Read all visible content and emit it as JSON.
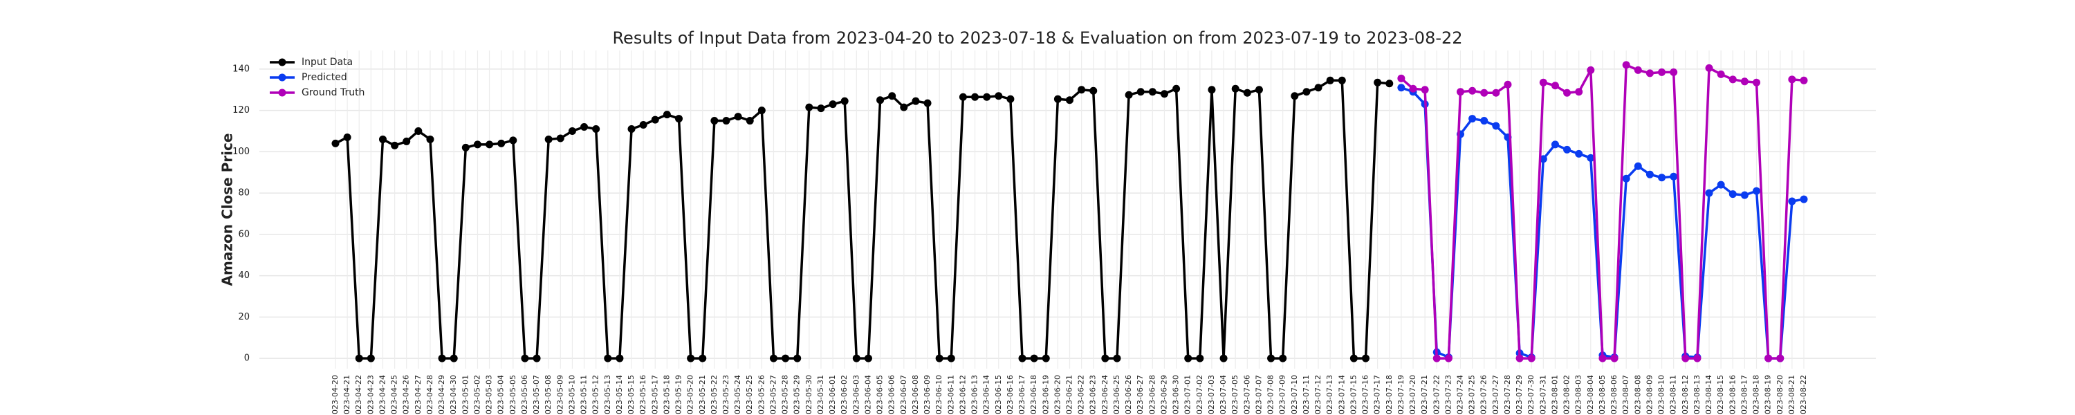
{
  "chart_data": {
    "type": "line",
    "title": "Results of Input Data from 2023-04-20 to 2023-07-18 & Evaluation on from 2023-07-19 to 2023-08-22",
    "y_label": "Amazon Close Price",
    "categories": [
      "2023-04-20",
      "2023-04-21",
      "2023-04-22",
      "2023-04-23",
      "2023-04-24",
      "2023-04-25",
      "2023-04-26",
      "2023-04-27",
      "2023-04-28",
      "2023-04-29",
      "2023-04-30",
      "2023-05-01",
      "2023-05-02",
      "2023-05-03",
      "2023-05-04",
      "2023-05-05",
      "2023-05-06",
      "2023-05-07",
      "2023-05-08",
      "2023-05-09",
      "2023-05-10",
      "2023-05-11",
      "2023-05-12",
      "2023-05-13",
      "2023-05-14",
      "2023-05-15",
      "2023-05-16",
      "2023-05-17",
      "2023-05-18",
      "2023-05-19",
      "2023-05-20",
      "2023-05-21",
      "2023-05-22",
      "2023-05-23",
      "2023-05-24",
      "2023-05-25",
      "2023-05-26",
      "2023-05-27",
      "2023-05-28",
      "2023-05-29",
      "2023-05-30",
      "2023-05-31",
      "2023-06-01",
      "2023-06-02",
      "2023-06-03",
      "2023-06-04",
      "2023-06-05",
      "2023-06-06",
      "2023-06-07",
      "2023-06-08",
      "2023-06-09",
      "2023-06-10",
      "2023-06-11",
      "2023-06-12",
      "2023-06-13",
      "2023-06-14",
      "2023-06-15",
      "2023-06-16",
      "2023-06-17",
      "2023-06-18",
      "2023-06-19",
      "2023-06-20",
      "2023-06-21",
      "2023-06-22",
      "2023-06-23",
      "2023-06-24",
      "2023-06-25",
      "2023-06-26",
      "2023-06-27",
      "2023-06-28",
      "2023-06-29",
      "2023-06-30",
      "2023-07-01",
      "2023-07-02",
      "2023-07-03",
      "2023-07-04",
      "2023-07-05",
      "2023-07-06",
      "2023-07-07",
      "2023-07-08",
      "2023-07-09",
      "2023-07-10",
      "2023-07-11",
      "2023-07-12",
      "2023-07-13",
      "2023-07-14",
      "2023-07-15",
      "2023-07-16",
      "2023-07-17",
      "2023-07-18",
      "2023-07-19",
      "2023-07-20",
      "2023-07-21",
      "2023-07-22",
      "2023-07-23",
      "2023-07-24",
      "2023-07-25",
      "2023-07-26",
      "2023-07-27",
      "2023-07-28",
      "2023-07-29",
      "2023-07-30",
      "2023-07-31",
      "2023-08-01",
      "2023-08-02",
      "2023-08-03",
      "2023-08-04",
      "2023-08-05",
      "2023-08-06",
      "2023-08-07",
      "2023-08-08",
      "2023-08-09",
      "2023-08-10",
      "2023-08-11",
      "2023-08-12",
      "2023-08-13",
      "2023-08-14",
      "2023-08-15",
      "2023-08-16",
      "2023-08-17",
      "2023-08-18",
      "2023-08-19",
      "2023-08-20",
      "2023-08-21",
      "2023-08-22"
    ],
    "series": [
      {
        "name": "Input Data",
        "color": "#000000",
        "values": [
          104,
          107,
          0,
          0,
          106,
          103,
          105,
          110,
          106,
          0,
          0,
          102,
          103.5,
          103.5,
          104,
          105.5,
          0,
          0,
          106,
          106.5,
          110,
          112,
          111,
          0,
          0,
          111,
          113,
          115.5,
          118,
          116,
          0,
          0,
          115,
          115,
          117,
          115,
          120,
          0,
          0,
          0,
          121.5,
          121,
          123,
          124.5,
          0,
          0,
          125,
          127,
          121.5,
          124.5,
          123.5,
          0,
          0,
          126.5,
          126.5,
          126.5,
          127,
          125.5,
          0,
          0,
          0,
          125.5,
          125,
          130,
          129.5,
          0,
          0,
          127.5,
          129,
          129,
          128,
          130.5,
          0,
          0,
          130,
          0,
          130.5,
          128.5,
          130,
          0,
          0,
          127,
          129,
          131,
          134.5,
          134.5,
          0,
          0,
          133.5,
          133,
          null,
          null,
          null,
          null,
          null,
          null,
          null,
          null,
          null,
          null,
          null,
          null,
          null,
          null,
          null,
          null,
          null,
          null,
          null,
          null,
          null,
          null,
          null,
          null,
          null,
          null,
          null,
          null,
          null,
          null,
          null,
          null,
          null,
          null,
          null
        ]
      },
      {
        "name": "Predicted",
        "color": "#0a3cf0",
        "values": [
          null,
          null,
          null,
          null,
          null,
          null,
          null,
          null,
          null,
          null,
          null,
          null,
          null,
          null,
          null,
          null,
          null,
          null,
          null,
          null,
          null,
          null,
          null,
          null,
          null,
          null,
          null,
          null,
          null,
          null,
          null,
          null,
          null,
          null,
          null,
          null,
          null,
          null,
          null,
          null,
          null,
          null,
          null,
          null,
          null,
          null,
          null,
          null,
          null,
          null,
          null,
          null,
          null,
          null,
          null,
          null,
          null,
          null,
          null,
          null,
          null,
          null,
          null,
          null,
          null,
          null,
          null,
          null,
          null,
          null,
          null,
          null,
          null,
          null,
          null,
          null,
          null,
          null,
          null,
          null,
          null,
          null,
          null,
          null,
          null,
          null,
          null,
          null,
          null,
          null,
          131,
          129,
          123,
          3,
          0.5,
          108.5,
          116,
          115,
          112.5,
          107,
          2.5,
          0.5,
          96.5,
          103.5,
          101,
          99,
          97,
          1.5,
          0.5,
          87,
          93,
          89,
          87.5,
          88,
          1,
          0.5,
          80,
          84,
          79.5,
          79,
          81,
          0,
          0,
          76,
          77
        ]
      },
      {
        "name": "Ground Truth",
        "color": "#b000b8",
        "values": [
          null,
          null,
          null,
          null,
          null,
          null,
          null,
          null,
          null,
          null,
          null,
          null,
          null,
          null,
          null,
          null,
          null,
          null,
          null,
          null,
          null,
          null,
          null,
          null,
          null,
          null,
          null,
          null,
          null,
          null,
          null,
          null,
          null,
          null,
          null,
          null,
          null,
          null,
          null,
          null,
          null,
          null,
          null,
          null,
          null,
          null,
          null,
          null,
          null,
          null,
          null,
          null,
          null,
          null,
          null,
          null,
          null,
          null,
          null,
          null,
          null,
          null,
          null,
          null,
          null,
          null,
          null,
          null,
          null,
          null,
          null,
          null,
          null,
          null,
          null,
          null,
          null,
          null,
          null,
          null,
          null,
          null,
          null,
          null,
          null,
          null,
          null,
          null,
          null,
          null,
          135.5,
          130.5,
          130,
          0,
          0,
          129,
          129.5,
          128.5,
          128.5,
          132.5,
          0,
          0,
          133.5,
          132,
          128.5,
          129,
          139.5,
          0,
          0,
          142,
          139.5,
          138,
          138.5,
          138.5,
          0,
          0,
          140.5,
          137.5,
          135,
          134,
          133.5,
          0,
          0,
          135,
          134.5
        ]
      }
    ],
    "ylim": [
      -5,
      149
    ],
    "yticks": [
      0,
      20,
      40,
      60,
      80,
      100,
      120,
      140
    ],
    "grid": true,
    "legend": "upper left"
  }
}
